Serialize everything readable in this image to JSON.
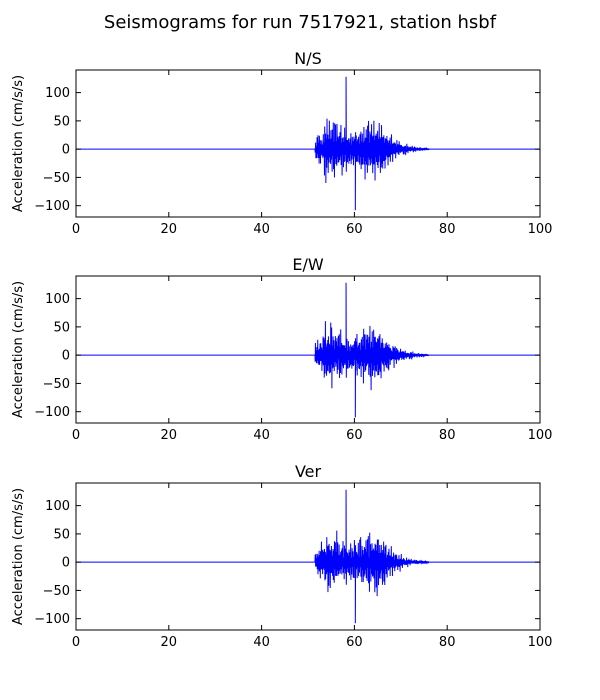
{
  "figure": {
    "title": "Seismograms for run 7517921, station hsbf"
  },
  "chart_data": [
    {
      "type": "line",
      "title": "N/S",
      "xlabel": "",
      "ylabel": "Acceleration (cm/s/s)",
      "xlim": [
        0,
        100
      ],
      "ylim": [
        -120,
        140
      ],
      "xticks": [
        0,
        20,
        40,
        60,
        80,
        100
      ],
      "yticks": [
        -100,
        -50,
        0,
        50,
        100
      ],
      "grid": false,
      "color": "#0000ff",
      "signal": {
        "onset": 51.5,
        "peak_time": 58.2,
        "peak_max": 128,
        "peak_min": -108,
        "decay_end": 76
      }
    },
    {
      "type": "line",
      "title": "E/W",
      "xlabel": "",
      "ylabel": "Acceleration (cm/s/s)",
      "xlim": [
        0,
        100
      ],
      "ylim": [
        -120,
        140
      ],
      "xticks": [
        0,
        20,
        40,
        60,
        80,
        100
      ],
      "yticks": [
        -100,
        -50,
        0,
        50,
        100
      ],
      "grid": false,
      "color": "#0000ff",
      "signal": {
        "onset": 51.5,
        "peak_time": 58.2,
        "peak_max": 128,
        "peak_min": -110,
        "decay_end": 76
      }
    },
    {
      "type": "line",
      "title": "Ver",
      "xlabel": "",
      "ylabel": "Acceleration (cm/s/s)",
      "xlim": [
        0,
        100
      ],
      "ylim": [
        -120,
        140
      ],
      "xticks": [
        0,
        20,
        40,
        60,
        80,
        100
      ],
      "yticks": [
        -100,
        -50,
        0,
        50,
        100
      ],
      "grid": false,
      "color": "#0000ff",
      "signal": {
        "onset": 51.5,
        "peak_time": 58.2,
        "peak_max": 128,
        "peak_min": -108,
        "decay_end": 76
      }
    }
  ]
}
